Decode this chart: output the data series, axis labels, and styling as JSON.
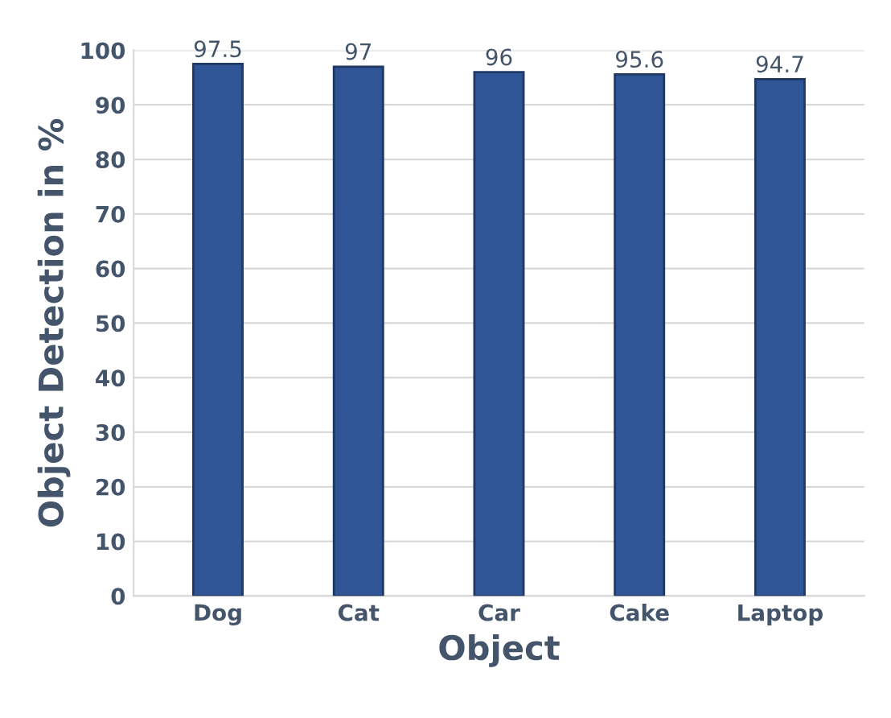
{
  "chart_data": {
    "type": "bar",
    "xlabel": "Object",
    "ylabel": "Object Detection in %",
    "categories": [
      "Dog",
      "Cat",
      "Car",
      "Cake",
      "Laptop"
    ],
    "series": [
      {
        "color": "#2f5597",
        "values": [
          97.5,
          97,
          96,
          95.6,
          94.7
        ]
      }
    ],
    "ylim": [
      0,
      100
    ],
    "yticks": [
      0,
      10,
      20,
      30,
      40,
      50,
      60,
      70,
      80,
      90,
      100
    ],
    "grid": "y",
    "data_labels": true
  }
}
